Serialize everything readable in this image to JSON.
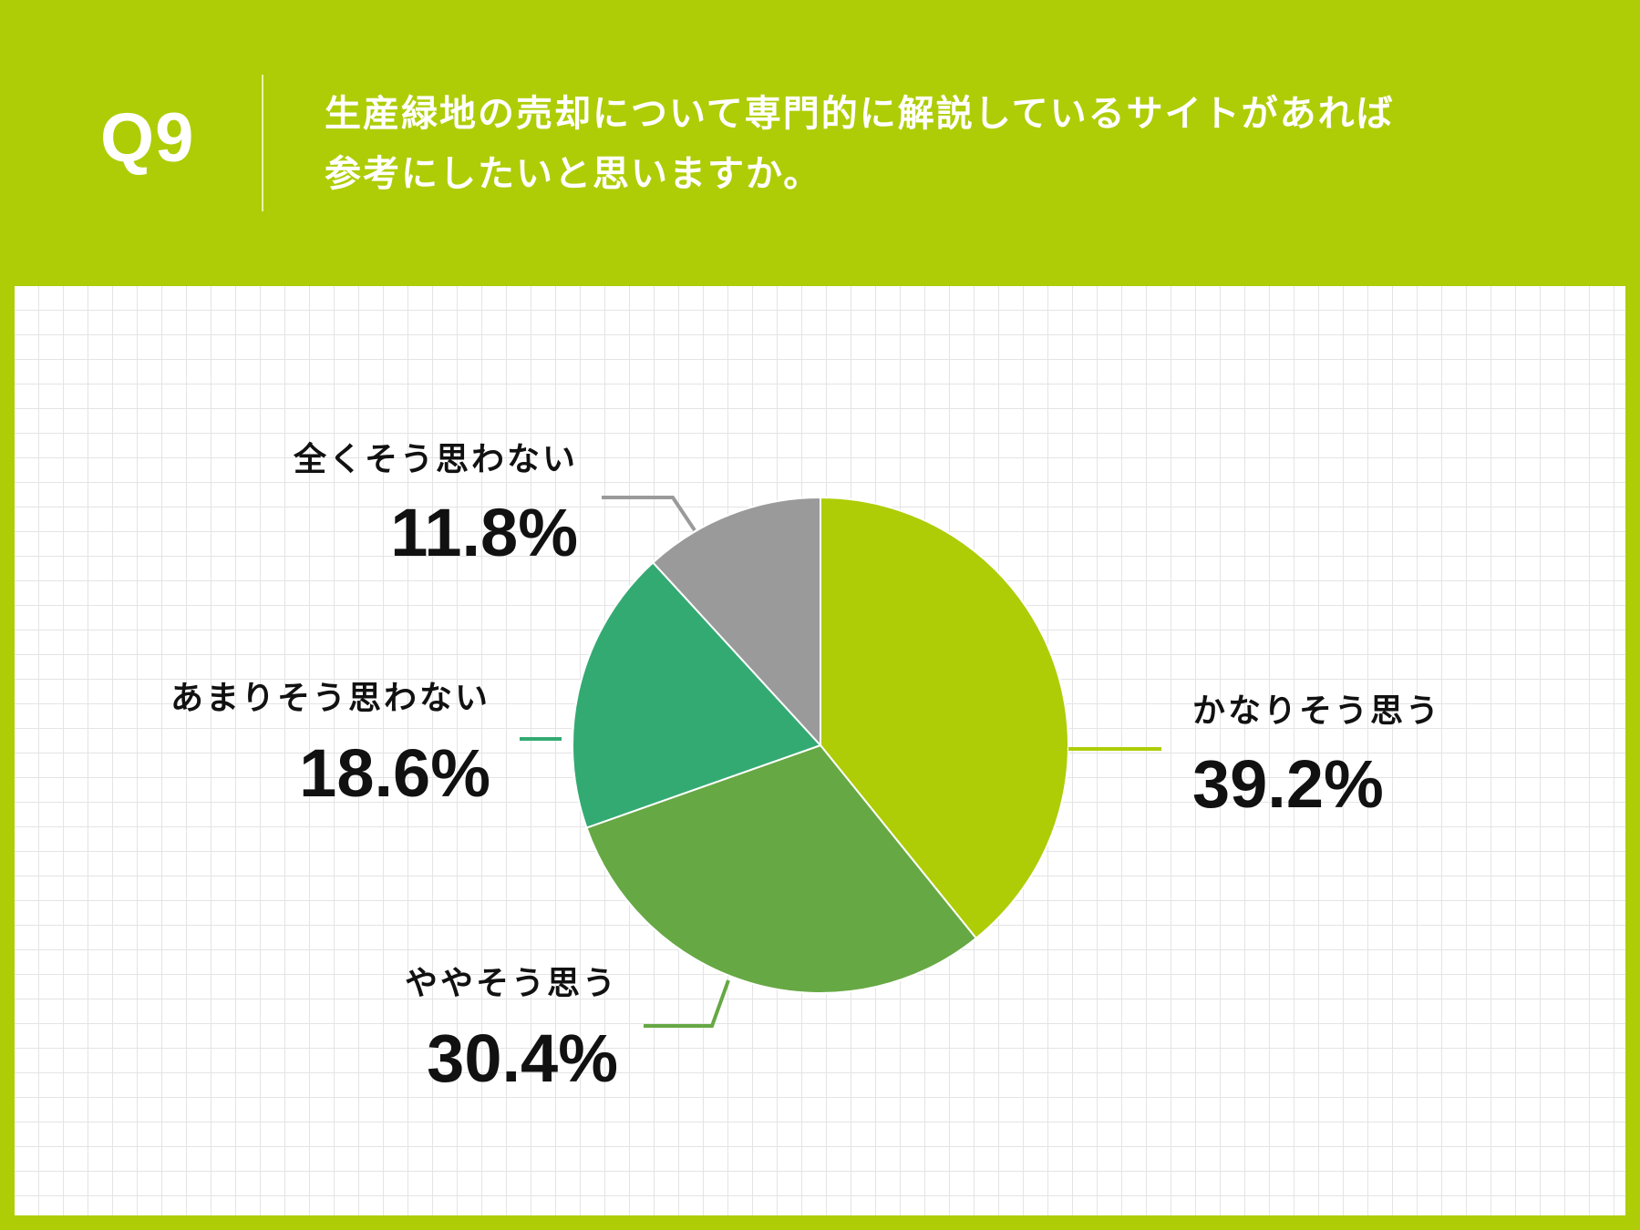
{
  "header": {
    "q_number": "Q9",
    "question_line1": "生産緑地の売却について専門的に解説しているサイトがあれば",
    "question_line2": "参考にしたいと思いますか。"
  },
  "colors": {
    "background": "#aecd06",
    "panel": "#ffffff",
    "grid": "#e4e4e4"
  },
  "chart_data": {
    "type": "pie",
    "start_angle_deg": 0,
    "direction": "clockwise",
    "slices": [
      {
        "label": "かなりそう思う",
        "value": 39.2,
        "value_label": "39.2%",
        "color": "#aecd06"
      },
      {
        "label": "ややそう思う",
        "value": 30.4,
        "value_label": "30.4%",
        "color": "#66a844"
      },
      {
        "label": "あまりそう思わない",
        "value": 18.6,
        "value_label": "18.6%",
        "color": "#34aa73"
      },
      {
        "label": "全くそう思わない",
        "value": 11.8,
        "value_label": "11.8%",
        "color": "#9a9a9a"
      }
    ]
  }
}
